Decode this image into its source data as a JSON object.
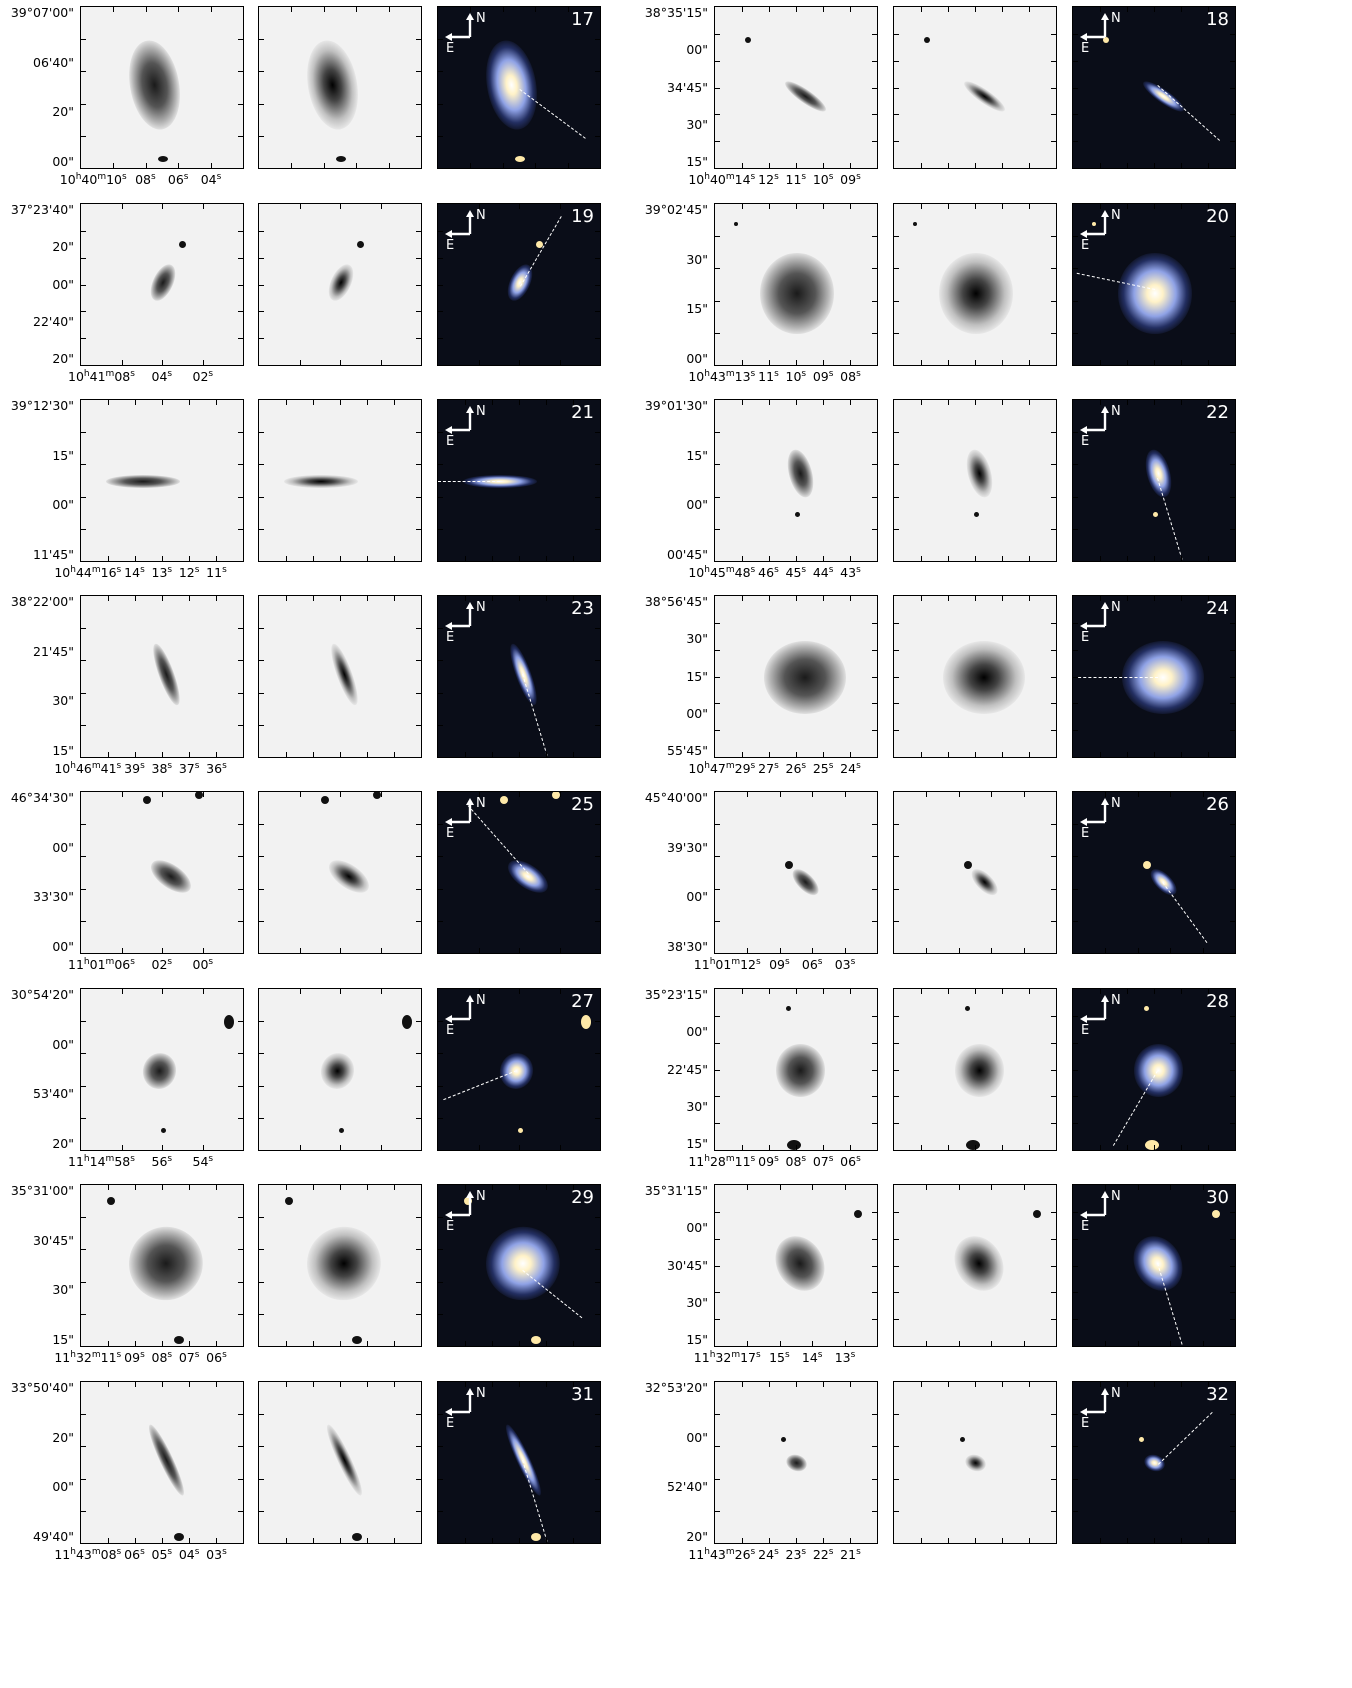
{
  "figure": {
    "rows": [
      {
        "left": {
          "id": "17",
          "yticks": [
            "39°07'00\"",
            "06'40\"",
            "20\"",
            "00\""
          ],
          "xticks": [
            "10^h40^m10^s",
            "08^s",
            "06^s",
            "04^s"
          ]
        },
        "right": {
          "id": "18",
          "yticks": [
            "38°35'15\"",
            "00\"",
            "34'45\"",
            "30\"",
            "15\""
          ],
          "xticks": [
            "10^h40^m14^s",
            "12^s",
            "11^s",
            "10^s",
            "09^s"
          ]
        }
      },
      {
        "left": {
          "id": "19",
          "yticks": [
            "37°23'40\"",
            "20\"",
            "00\"",
            "22'40\"",
            "20\""
          ],
          "xticks": [
            "10^h41^m08^s",
            "04^s",
            "02^s"
          ]
        },
        "right": {
          "id": "20",
          "yticks": [
            "39°02'45\"",
            "30\"",
            "15\"",
            "00\""
          ],
          "xticks": [
            "10^h43^m13^s",
            "11^s",
            "10^s",
            "09^s",
            "08^s"
          ]
        }
      },
      {
        "left": {
          "id": "21",
          "yticks": [
            "39°12'30\"",
            "15\"",
            "00\"",
            "11'45\""
          ],
          "xticks": [
            "10^h44^m16^s",
            "14^s",
            "13^s",
            "12^s",
            "11^s"
          ]
        },
        "right": {
          "id": "22",
          "yticks": [
            "39°01'30\"",
            "15\"",
            "00\"",
            "00'45\""
          ],
          "xticks": [
            "10^h45^m48^s",
            "46^s",
            "45^s",
            "44^s",
            "43^s"
          ]
        }
      },
      {
        "left": {
          "id": "23",
          "yticks": [
            "38°22'00\"",
            "21'45\"",
            "30\"",
            "15\""
          ],
          "xticks": [
            "10^h46^m41^s",
            "39^s",
            "38^s",
            "37^s",
            "36^s"
          ]
        },
        "right": {
          "id": "24",
          "yticks": [
            "38°56'45\"",
            "30\"",
            "15\"",
            "00\"",
            "55'45\""
          ],
          "xticks": [
            "10^h47^m29^s",
            "27^s",
            "26^s",
            "25^s",
            "24^s"
          ]
        }
      },
      {
        "left": {
          "id": "25",
          "yticks": [
            "46°34'30\"",
            "00\"",
            "33'30\"",
            "00\""
          ],
          "xticks": [
            "11^h01^m06^s",
            "02^s",
            "00^s"
          ]
        },
        "right": {
          "id": "26",
          "yticks": [
            "45°40'00\"",
            "39'30\"",
            "00\"",
            "38'30\""
          ],
          "xticks": [
            "11^h01^m12^s",
            "09^s",
            "06^s",
            "03^s"
          ]
        }
      },
      {
        "left": {
          "id": "27",
          "yticks": [
            "30°54'20\"",
            "00\"",
            "53'40\"",
            "20\""
          ],
          "xticks": [
            "11^h14^m58^s",
            "56^s",
            "54^s"
          ]
        },
        "right": {
          "id": "28",
          "yticks": [
            "35°23'15\"",
            "00\"",
            "22'45\"",
            "30\"",
            "15\""
          ],
          "xticks": [
            "11^h28^m11^s",
            "09^s",
            "08^s",
            "07^s",
            "06^s"
          ]
        }
      },
      {
        "left": {
          "id": "29",
          "yticks": [
            "35°31'00\"",
            "30'45\"",
            "30\"",
            "15\""
          ],
          "xticks": [
            "11^h32^m11^s",
            "09^s",
            "08^s",
            "07^s",
            "06^s"
          ]
        },
        "right": {
          "id": "30",
          "yticks": [
            "35°31'15\"",
            "00\"",
            "30'45\"",
            "30\"",
            "15\""
          ],
          "xticks": [
            "11^h32^m17^s",
            "15^s",
            "14^s",
            "13^s"
          ]
        }
      },
      {
        "left": {
          "id": "31",
          "yticks": [
            "33°50'40\"",
            "20\"",
            "00\"",
            "49'40\""
          ],
          "xticks": [
            "11^h43^m08^s",
            "06^s",
            "05^s",
            "04^s",
            "03^s"
          ]
        },
        "right": {
          "id": "32",
          "yticks": [
            "32°53'20\"",
            "00\"",
            "52'40\"",
            "20\""
          ],
          "xticks": [
            "11^h43^m26^s",
            "24^s",
            "23^s",
            "22^s",
            "21^s"
          ]
        }
      }
    ],
    "compass_labels": {
      "north": "N",
      "east": "E"
    },
    "colors": {
      "compass": "#ffffff",
      "slit": "#ffffff",
      "gray_bg": "#f2f2f2",
      "color_bg": "#0a0d18"
    }
  }
}
